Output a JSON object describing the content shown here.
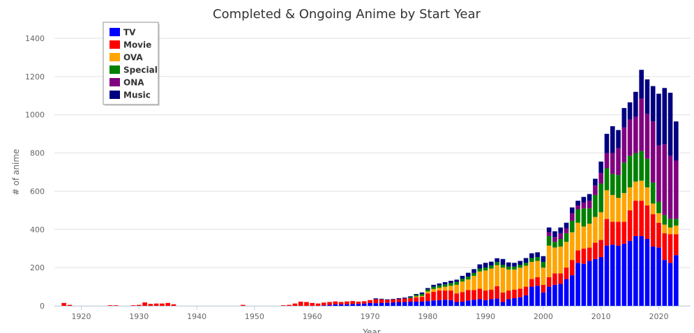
{
  "chart_data": {
    "type": "bar",
    "stacked": true,
    "title": "Completed & Ongoing Anime by Start Year",
    "xlabel": "Year",
    "ylabel": "# of anime",
    "xlim": [
      1914,
      2025
    ],
    "ylim": [
      0,
      1400
    ],
    "xticks": [
      1920,
      1930,
      1940,
      1950,
      1960,
      1970,
      1980,
      1990,
      2000,
      2010,
      2020
    ],
    "yticks": [
      0,
      200,
      400,
      600,
      800,
      1000,
      1200,
      1400
    ],
    "grid": true,
    "legend_position": "top-left",
    "years": [
      1917,
      1918,
      1919,
      1920,
      1921,
      1922,
      1923,
      1924,
      1925,
      1926,
      1927,
      1928,
      1929,
      1930,
      1931,
      1932,
      1933,
      1934,
      1935,
      1936,
      1937,
      1938,
      1939,
      1940,
      1941,
      1942,
      1943,
      1944,
      1945,
      1946,
      1947,
      1948,
      1949,
      1950,
      1951,
      1952,
      1953,
      1954,
      1955,
      1956,
      1957,
      1958,
      1959,
      1960,
      1961,
      1962,
      1963,
      1964,
      1965,
      1966,
      1967,
      1968,
      1969,
      1970,
      1971,
      1972,
      1973,
      1974,
      1975,
      1976,
      1977,
      1978,
      1979,
      1980,
      1981,
      1982,
      1983,
      1984,
      1985,
      1986,
      1987,
      1988,
      1989,
      1990,
      1991,
      1992,
      1993,
      1994,
      1995,
      1996,
      1997,
      1998,
      1999,
      2000,
      2001,
      2002,
      2003,
      2004,
      2005,
      2006,
      2007,
      2008,
      2009,
      2010,
      2011,
      2012,
      2013,
      2014,
      2015,
      2016,
      2017,
      2018,
      2019,
      2020,
      2021,
      2022,
      2023
    ],
    "series": [
      {
        "name": "TV",
        "color": "#0000ff",
        "values": [
          0,
          0,
          0,
          0,
          0,
          0,
          0,
          0,
          0,
          0,
          0,
          0,
          0,
          0,
          0,
          0,
          0,
          0,
          0,
          0,
          0,
          0,
          0,
          0,
          0,
          0,
          0,
          0,
          0,
          0,
          0,
          0,
          0,
          0,
          0,
          0,
          0,
          0,
          0,
          0,
          0,
          0,
          0,
          0,
          0,
          2,
          5,
          8,
          8,
          8,
          10,
          10,
          12,
          15,
          14,
          16,
          16,
          18,
          20,
          20,
          22,
          22,
          22,
          25,
          28,
          30,
          32,
          30,
          20,
          22,
          28,
          32,
          35,
          30,
          35,
          38,
          20,
          35,
          40,
          45,
          55,
          100,
          105,
          70,
          100,
          110,
          115,
          140,
          160,
          225,
          220,
          235,
          245,
          255,
          315,
          320,
          315,
          325,
          340,
          365,
          365,
          350,
          310,
          305,
          240,
          225,
          265
        ]
      },
      {
        "name": "Movie",
        "color": "#ff0000",
        "values": [
          15,
          5,
          0,
          0,
          0,
          0,
          0,
          0,
          3,
          3,
          0,
          0,
          3,
          5,
          18,
          10,
          12,
          12,
          15,
          8,
          0,
          0,
          0,
          0,
          0,
          0,
          0,
          0,
          0,
          0,
          0,
          5,
          0,
          0,
          0,
          0,
          0,
          0,
          3,
          5,
          12,
          22,
          20,
          15,
          12,
          15,
          15,
          15,
          12,
          15,
          15,
          12,
          12,
          15,
          20,
          18,
          15,
          15,
          15,
          18,
          18,
          22,
          25,
          40,
          45,
          50,
          48,
          50,
          45,
          50,
          55,
          50,
          55,
          50,
          50,
          65,
          50,
          45,
          45,
          45,
          45,
          40,
          45,
          40,
          50,
          60,
          55,
          60,
          80,
          65,
          80,
          70,
          85,
          90,
          140,
          120,
          125,
          115,
          160,
          185,
          185,
          175,
          170,
          130,
          140,
          150,
          110
        ]
      },
      {
        "name": "OVA",
        "color": "#ffa500",
        "values": [
          0,
          0,
          0,
          0,
          0,
          0,
          0,
          0,
          0,
          0,
          0,
          0,
          0,
          0,
          0,
          0,
          0,
          0,
          0,
          0,
          0,
          0,
          0,
          0,
          0,
          0,
          0,
          0,
          0,
          0,
          0,
          0,
          0,
          0,
          0,
          0,
          0,
          0,
          0,
          0,
          0,
          0,
          0,
          0,
          0,
          0,
          0,
          0,
          0,
          0,
          0,
          0,
          0,
          0,
          0,
          0,
          0,
          0,
          0,
          0,
          0,
          5,
          5,
          10,
          15,
          15,
          20,
          25,
          45,
          55,
          55,
          75,
          90,
          105,
          110,
          110,
          130,
          110,
          105,
          110,
          110,
          90,
          85,
          90,
          165,
          135,
          140,
          135,
          145,
          145,
          115,
          125,
          135,
          145,
          150,
          140,
          125,
          150,
          120,
          100,
          105,
          95,
          55,
          50,
          45,
          35,
          45
        ]
      },
      {
        "name": "Special",
        "color": "#008000",
        "values": [
          0,
          0,
          0,
          0,
          0,
          0,
          0,
          0,
          0,
          0,
          0,
          0,
          0,
          0,
          0,
          0,
          0,
          0,
          0,
          0,
          0,
          0,
          0,
          0,
          0,
          0,
          0,
          0,
          0,
          0,
          0,
          0,
          0,
          0,
          0,
          0,
          0,
          0,
          0,
          0,
          0,
          0,
          0,
          0,
          0,
          0,
          0,
          0,
          0,
          0,
          0,
          0,
          0,
          0,
          0,
          0,
          0,
          0,
          0,
          0,
          5,
          8,
          10,
          10,
          12,
          12,
          12,
          14,
          15,
          15,
          15,
          15,
          15,
          15,
          16,
          16,
          15,
          15,
          15,
          15,
          15,
          20,
          20,
          30,
          50,
          30,
          40,
          45,
          60,
          70,
          95,
          80,
          115,
          150,
          115,
          110,
          120,
          160,
          165,
          150,
          155,
          150,
          110,
          60,
          50,
          45,
          35
        ]
      },
      {
        "name": "ONA",
        "color": "#800080",
        "values": [
          0,
          0,
          0,
          0,
          0,
          0,
          0,
          0,
          0,
          0,
          0,
          0,
          0,
          0,
          0,
          0,
          0,
          0,
          0,
          0,
          0,
          0,
          0,
          0,
          0,
          0,
          0,
          0,
          0,
          0,
          0,
          0,
          0,
          0,
          0,
          0,
          0,
          0,
          0,
          0,
          0,
          0,
          0,
          0,
          0,
          0,
          0,
          0,
          0,
          0,
          0,
          0,
          0,
          0,
          0,
          0,
          0,
          0,
          0,
          0,
          0,
          0,
          0,
          0,
          0,
          0,
          0,
          0,
          0,
          0,
          0,
          0,
          0,
          0,
          0,
          0,
          0,
          0,
          0,
          0,
          0,
          0,
          0,
          0,
          20,
          25,
          30,
          25,
          40,
          20,
          30,
          40,
          50,
          55,
          80,
          110,
          140,
          185,
          190,
          190,
          275,
          235,
          320,
          295,
          370,
          330,
          305
        ]
      },
      {
        "name": "Music",
        "color": "#000080",
        "values": [
          0,
          0,
          0,
          0,
          0,
          0,
          0,
          0,
          0,
          0,
          0,
          0,
          0,
          0,
          0,
          0,
          0,
          0,
          0,
          0,
          0,
          0,
          0,
          0,
          0,
          0,
          0,
          0,
          0,
          0,
          0,
          0,
          0,
          0,
          0,
          0,
          0,
          0,
          0,
          0,
          0,
          0,
          0,
          0,
          0,
          0,
          0,
          0,
          0,
          0,
          0,
          0,
          0,
          0,
          5,
          3,
          3,
          3,
          5,
          5,
          5,
          5,
          8,
          8,
          10,
          10,
          12,
          12,
          12,
          15,
          20,
          20,
          22,
          25,
          20,
          20,
          30,
          22,
          20,
          20,
          25,
          25,
          25,
          30,
          25,
          30,
          30,
          30,
          30,
          25,
          30,
          35,
          35,
          60,
          100,
          140,
          95,
          100,
          90,
          130,
          150,
          180,
          185,
          270,
          295,
          330,
          205
        ]
      }
    ]
  }
}
